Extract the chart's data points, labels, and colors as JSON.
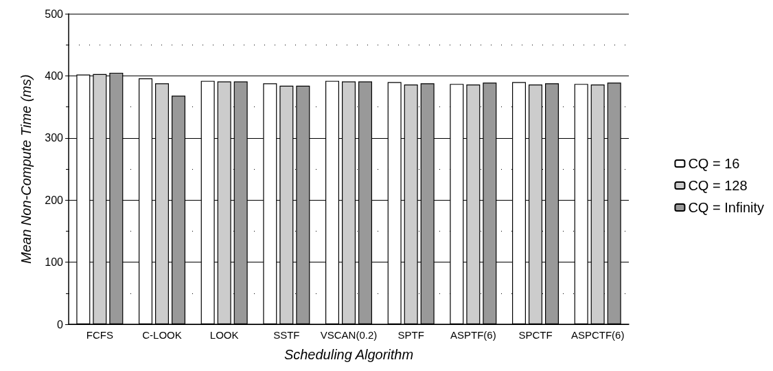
{
  "chart_data": {
    "type": "bar",
    "xlabel": "Scheduling Algorithm",
    "ylabel": "Mean Non-Compute Time (ms)",
    "categories": [
      "FCFS",
      "C-LOOK",
      "LOOK",
      "SSTF",
      "VSCAN(0.2)",
      "SPTF",
      "ASPTF(6)",
      "SPCTF",
      "ASPCTF(6)"
    ],
    "series": [
      {
        "name": "CQ = 16",
        "color": "#ffffff",
        "values": [
          402,
          396,
          392,
          388,
          392,
          390,
          387,
          390,
          387
        ]
      },
      {
        "name": "CQ = 128",
        "color": "#cccccc",
        "values": [
          403,
          388,
          391,
          384,
          391,
          386,
          386,
          386,
          386
        ]
      },
      {
        "name": "CQ = Infinity",
        "color": "#999999",
        "values": [
          405,
          368,
          391,
          384,
          391,
          388,
          389,
          388,
          389
        ]
      }
    ],
    "ylim": [
      0,
      500
    ],
    "yticks": [
      0,
      100,
      200,
      300,
      400,
      500
    ],
    "grid": "y",
    "legend": "right"
  }
}
